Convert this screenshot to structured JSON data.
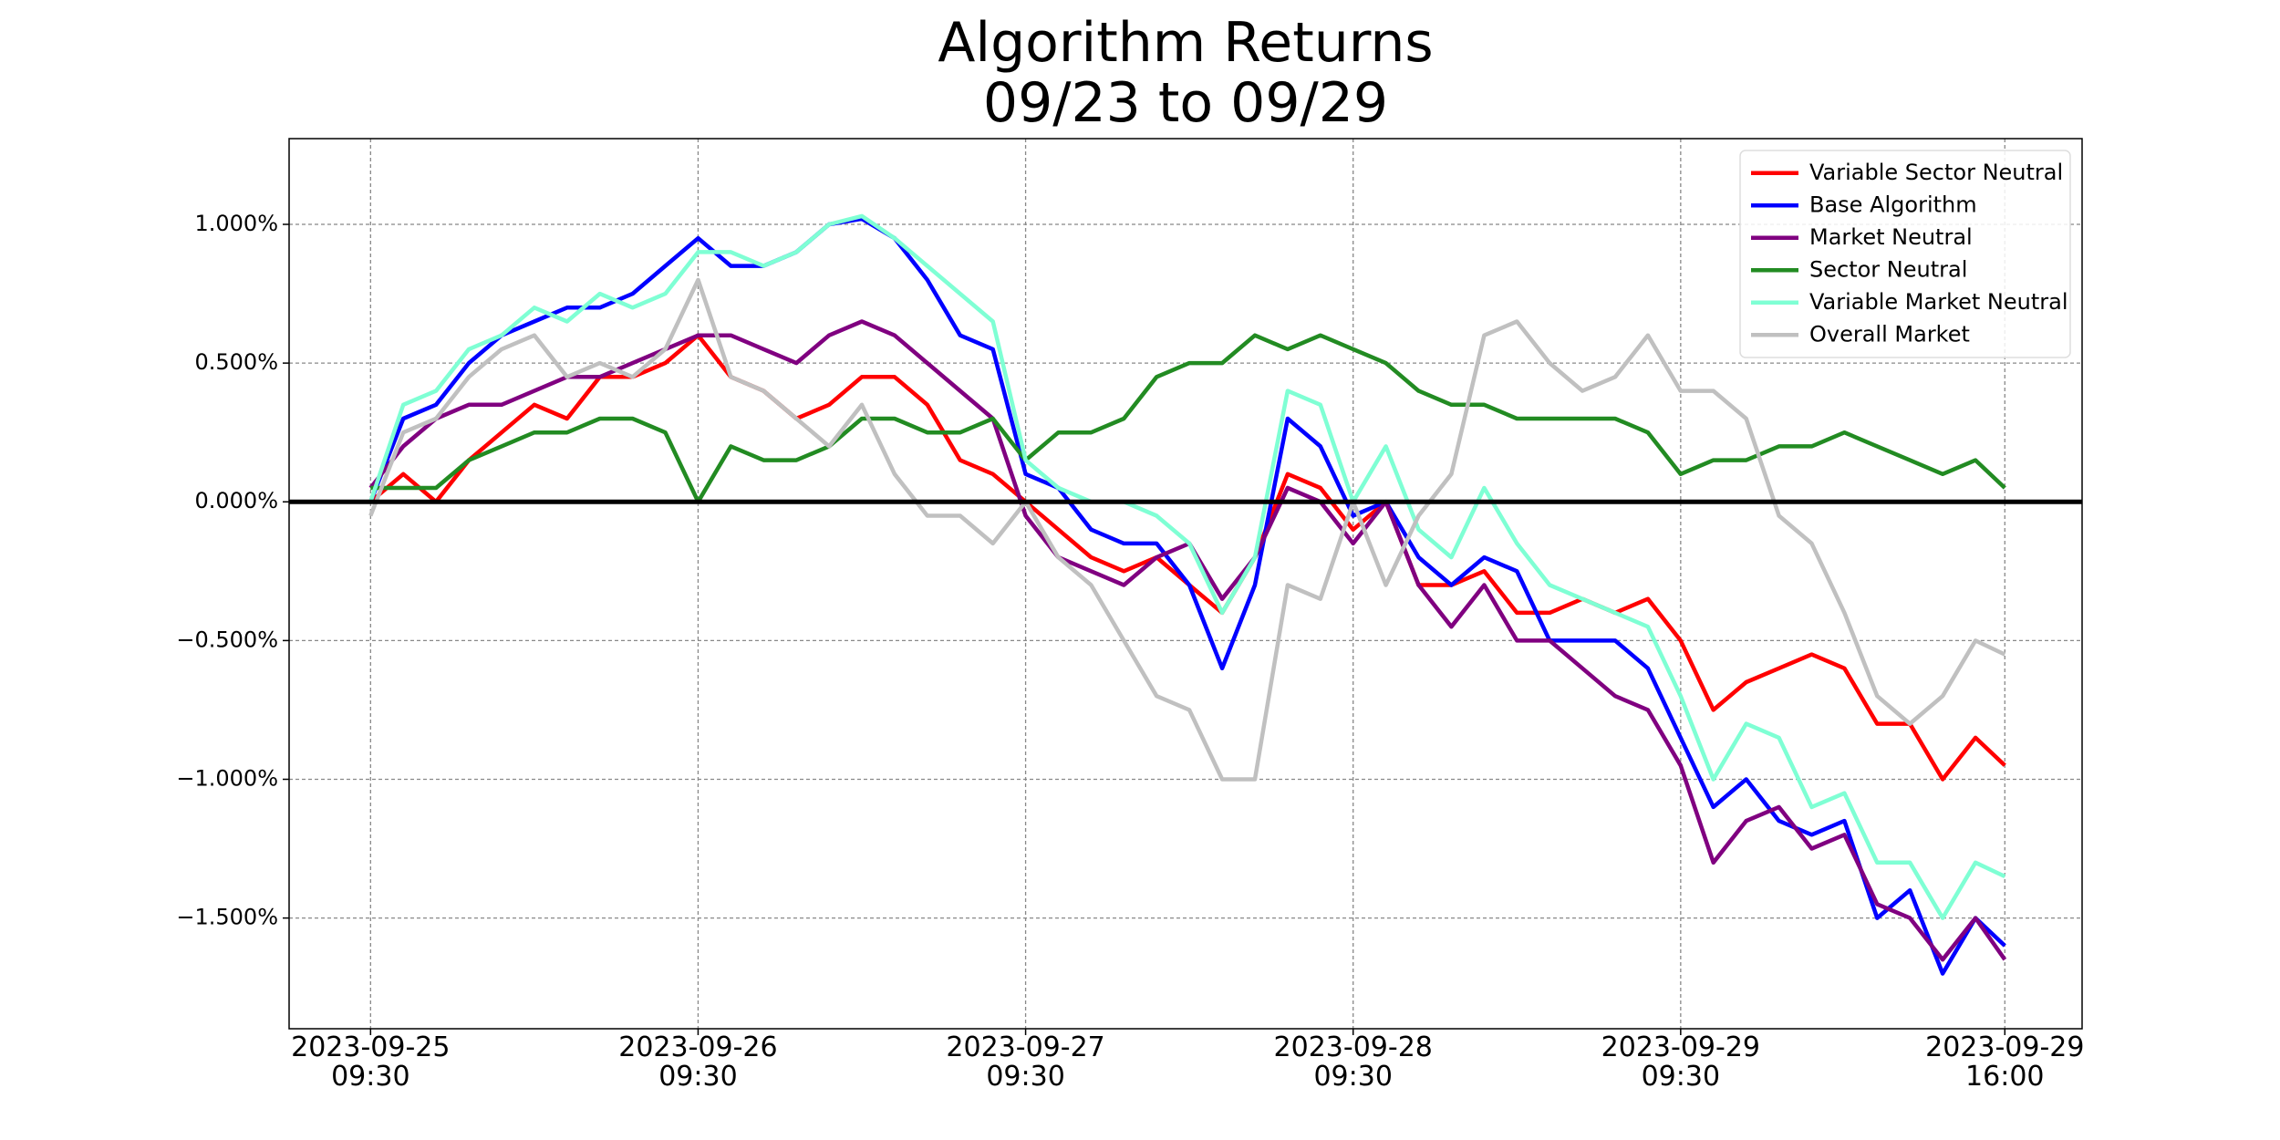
{
  "chart_data": {
    "type": "line",
    "title": "Algorithm Returns\n09/23 to 09/29",
    "x": [
      0,
      39,
      78,
      117,
      156,
      195,
      234,
      273,
      312,
      351,
      390,
      429,
      468,
      507,
      546,
      585,
      624,
      663,
      702,
      741,
      780,
      819,
      858,
      897,
      936,
      975,
      1014,
      1053,
      1092,
      1131,
      1170,
      1209,
      1248,
      1287,
      1326,
      1365,
      1404,
      1443,
      1482,
      1521,
      1560,
      1599,
      1638,
      1677,
      1716,
      1755,
      1794,
      1833,
      1872,
      1911,
      1946
    ],
    "xlim": [
      -97,
      2038
    ],
    "xticks": [
      {
        "value": 0,
        "label": "2023-09-25\n09:30"
      },
      {
        "value": 390,
        "label": "2023-09-26\n09:30"
      },
      {
        "value": 780,
        "label": "2023-09-27\n09:30"
      },
      {
        "value": 1170,
        "label": "2023-09-28\n09:30"
      },
      {
        "value": 1560,
        "label": "2023-09-29\n09:30"
      },
      {
        "value": 1946,
        "label": "2023-09-29\n16:00"
      }
    ],
    "ylim": [
      -1.899,
      1.309
    ],
    "yticks": [
      {
        "value": -1.5,
        "label": "−1.500%"
      },
      {
        "value": -1,
        "label": "−1.000%"
      },
      {
        "value": -0.5,
        "label": "−0.500%"
      },
      {
        "value": 0,
        "label": "0.000%"
      },
      {
        "value": 0.5,
        "label": "0.500%"
      },
      {
        "value": 1,
        "label": "1.000%"
      }
    ],
    "grid": true,
    "hline": 0,
    "legend": "upper right",
    "series": [
      {
        "name": "Variable Sector Neutral",
        "color": "#ff0000",
        "values": [
          0.0,
          0.1,
          0.0,
          0.15,
          0.25,
          0.35,
          0.3,
          0.45,
          0.45,
          0.5,
          0.6,
          0.45,
          0.4,
          0.3,
          0.35,
          0.45,
          0.45,
          0.35,
          0.15,
          0.1,
          0.0,
          -0.1,
          -0.2,
          -0.25,
          -0.2,
          -0.3,
          -0.4,
          -0.2,
          0.1,
          0.05,
          -0.1,
          0.0,
          -0.3,
          -0.3,
          -0.25,
          -0.4,
          -0.4,
          -0.35,
          -0.4,
          -0.35,
          -0.5,
          -0.75,
          -0.65,
          -0.6,
          -0.55,
          -0.6,
          -0.8,
          -0.8,
          -1.0,
          -0.85,
          -0.95
        ]
      },
      {
        "name": "Base Algorithm",
        "color": "#0000ff",
        "values": [
          0.0,
          0.3,
          0.35,
          0.5,
          0.6,
          0.65,
          0.7,
          0.7,
          0.75,
          0.85,
          0.95,
          0.85,
          0.85,
          0.9,
          1.0,
          1.02,
          0.95,
          0.8,
          0.6,
          0.55,
          0.1,
          0.05,
          -0.1,
          -0.15,
          -0.15,
          -0.3,
          -0.6,
          -0.3,
          0.3,
          0.2,
          -0.05,
          0.0,
          -0.2,
          -0.3,
          -0.2,
          -0.25,
          -0.5,
          -0.5,
          -0.5,
          -0.6,
          -0.85,
          -1.1,
          -1.0,
          -1.15,
          -1.2,
          -1.15,
          -1.5,
          -1.4,
          -1.7,
          -1.5,
          -1.6
        ]
      },
      {
        "name": "Market Neutral",
        "color": "#800080",
        "values": [
          0.05,
          0.2,
          0.3,
          0.35,
          0.35,
          0.4,
          0.45,
          0.45,
          0.5,
          0.55,
          0.6,
          0.6,
          0.55,
          0.5,
          0.6,
          0.65,
          0.6,
          0.5,
          0.4,
          0.3,
          -0.05,
          -0.2,
          -0.25,
          -0.3,
          -0.2,
          -0.15,
          -0.35,
          -0.2,
          0.05,
          0.0,
          -0.15,
          0.0,
          -0.3,
          -0.45,
          -0.3,
          -0.5,
          -0.5,
          -0.6,
          -0.7,
          -0.75,
          -0.95,
          -1.3,
          -1.15,
          -1.1,
          -1.25,
          -1.2,
          -1.45,
          -1.5,
          -1.65,
          -1.5,
          -1.65
        ]
      },
      {
        "name": "Sector Neutral",
        "color": "#228b22",
        "values": [
          0.05,
          0.05,
          0.05,
          0.15,
          0.2,
          0.25,
          0.25,
          0.3,
          0.3,
          0.25,
          0.0,
          0.2,
          0.15,
          0.15,
          0.2,
          0.3,
          0.3,
          0.25,
          0.25,
          0.3,
          0.15,
          0.25,
          0.25,
          0.3,
          0.45,
          0.5,
          0.5,
          0.6,
          0.55,
          0.6,
          0.55,
          0.5,
          0.4,
          0.35,
          0.35,
          0.3,
          0.3,
          0.3,
          0.3,
          0.25,
          0.1,
          0.15,
          0.15,
          0.2,
          0.2,
          0.25,
          0.2,
          0.15,
          0.1,
          0.15,
          0.05
        ]
      },
      {
        "name": "Variable Market Neutral",
        "color": "#7fffd4",
        "values": [
          0.0,
          0.35,
          0.4,
          0.55,
          0.6,
          0.7,
          0.65,
          0.75,
          0.7,
          0.75,
          0.9,
          0.9,
          0.85,
          0.9,
          1.0,
          1.03,
          0.95,
          0.85,
          0.75,
          0.65,
          0.15,
          0.05,
          0.0,
          0.0,
          -0.05,
          -0.15,
          -0.4,
          -0.2,
          0.4,
          0.35,
          0.0,
          0.2,
          -0.1,
          -0.2,
          0.05,
          -0.15,
          -0.3,
          -0.35,
          -0.4,
          -0.45,
          -0.7,
          -1.0,
          -0.8,
          -0.85,
          -1.1,
          -1.05,
          -1.3,
          -1.3,
          -1.5,
          -1.3,
          -1.35
        ]
      },
      {
        "name": "Overall Market",
        "color": "#c0c0c0",
        "values": [
          -0.05,
          0.25,
          0.3,
          0.45,
          0.55,
          0.6,
          0.45,
          0.5,
          0.45,
          0.55,
          0.8,
          0.45,
          0.4,
          0.3,
          0.2,
          0.35,
          0.1,
          -0.05,
          -0.05,
          -0.15,
          0.0,
          -0.2,
          -0.3,
          -0.5,
          -0.7,
          -0.75,
          -1.0,
          -1.0,
          -0.3,
          -0.35,
          0.0,
          -0.3,
          -0.05,
          0.1,
          0.6,
          0.65,
          0.5,
          0.4,
          0.45,
          0.6,
          0.4,
          0.4,
          0.3,
          -0.05,
          -0.15,
          -0.4,
          -0.7,
          -0.8,
          -0.7,
          -0.5,
          -0.55
        ]
      }
    ]
  }
}
